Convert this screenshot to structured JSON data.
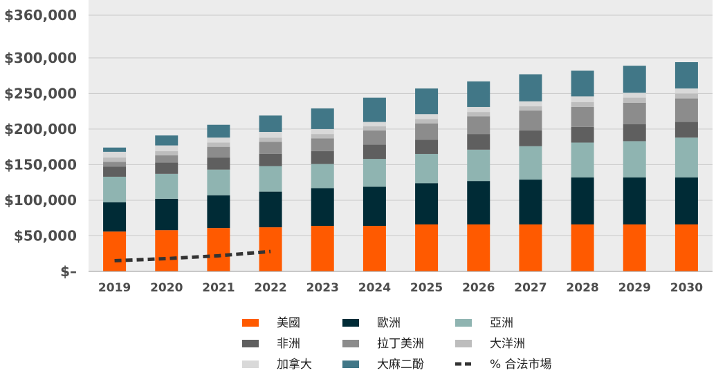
{
  "chart_data": {
    "type": "bar",
    "stacked": true,
    "categories": [
      "2019",
      "2020",
      "2021",
      "2022",
      "2023",
      "2024",
      "2025",
      "2026",
      "2027",
      "2028",
      "2029",
      "2030"
    ],
    "ylim": [
      0,
      360000
    ],
    "yticks": [
      0,
      50000,
      100000,
      150000,
      200000,
      250000,
      300000,
      360000
    ],
    "ytick_labels": [
      "$–",
      "$50,000",
      "$100,000",
      "$150,000",
      "$200,000",
      "$250,000",
      "$300,000",
      "$360,000"
    ],
    "grid": true,
    "legend_position": "bottom",
    "series": [
      {
        "name": "美國",
        "color": "#ff5a00",
        "values": [
          56000,
          58000,
          61000,
          62000,
          64000,
          64000,
          66000,
          66000,
          66000,
          66000,
          66000,
          66000
        ]
      },
      {
        "name": "歐洲",
        "color": "#002b36",
        "values": [
          41000,
          44000,
          46000,
          50000,
          53000,
          55000,
          58000,
          61000,
          63000,
          66000,
          66000,
          66000
        ]
      },
      {
        "name": "亞洲",
        "color": "#8fb4b1",
        "values": [
          36000,
          35000,
          36000,
          36000,
          34000,
          39000,
          41000,
          44000,
          47000,
          49000,
          51000,
          56000
        ]
      },
      {
        "name": "非洲",
        "color": "#5f5f5f",
        "values": [
          14000,
          16000,
          17000,
          17000,
          18000,
          20000,
          20000,
          22000,
          22000,
          22000,
          24000,
          22000
        ]
      },
      {
        "name": "拉丁美洲",
        "color": "#8c8c8c",
        "values": [
          7000,
          10000,
          15000,
          17000,
          18000,
          20000,
          23000,
          25000,
          28000,
          28000,
          30000,
          33000
        ]
      },
      {
        "name": "大洋洲",
        "color": "#bdbdbd",
        "values": [
          6000,
          6000,
          6000,
          6000,
          6000,
          6000,
          6000,
          6000,
          6000,
          7000,
          7000,
          7000
        ]
      },
      {
        "name": "加拿大",
        "color": "#d9d9d9",
        "values": [
          8000,
          8000,
          7000,
          8000,
          7000,
          6000,
          7000,
          7000,
          7000,
          8000,
          7000,
          7000
        ]
      },
      {
        "name": "大麻二酚",
        "color": "#417787",
        "values": [
          6000,
          14000,
          18000,
          23000,
          29000,
          34000,
          36000,
          36000,
          38000,
          36000,
          38000,
          37000
        ]
      }
    ],
    "line_series": [
      {
        "name": "% 合法市場",
        "style": "dashed",
        "color": "#333333",
        "categories": [
          "2019",
          "2020",
          "2021",
          "2022"
        ],
        "values": [
          15000,
          18000,
          22000,
          28000
        ]
      }
    ]
  },
  "legend": [
    {
      "label": "美國",
      "color": "#ff5a00",
      "kind": "box"
    },
    {
      "label": "歐洲",
      "color": "#002b36",
      "kind": "box"
    },
    {
      "label": "亞洲",
      "color": "#8fb4b1",
      "kind": "box"
    },
    {
      "label": "非洲",
      "color": "#5f5f5f",
      "kind": "box"
    },
    {
      "label": "拉丁美洲",
      "color": "#8c8c8c",
      "kind": "box"
    },
    {
      "label": "大洋洲",
      "color": "#bdbdbd",
      "kind": "box"
    },
    {
      "label": "加拿大",
      "color": "#d9d9d9",
      "kind": "box"
    },
    {
      "label": "大麻二酚",
      "color": "#417787",
      "kind": "box"
    },
    {
      "label": "% 合法市場",
      "color": "#333333",
      "kind": "dash"
    }
  ]
}
